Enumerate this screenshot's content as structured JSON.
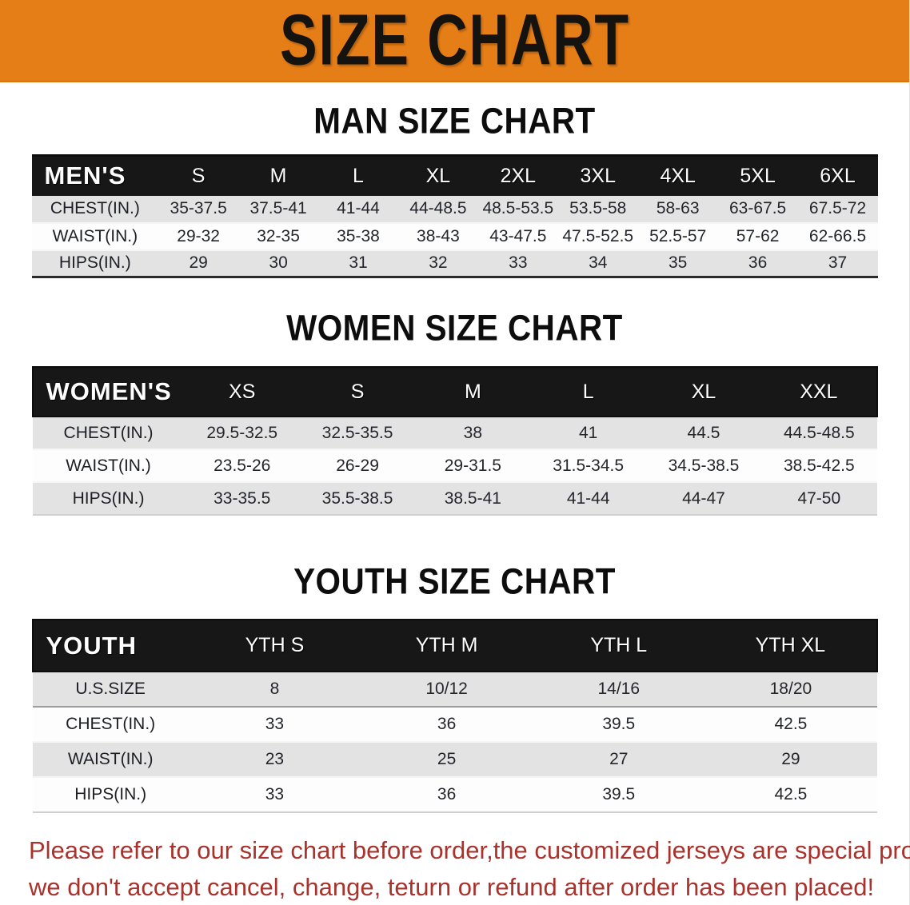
{
  "banner": {
    "title": "SIZE CHART",
    "bg_color": "#e67e17"
  },
  "colors": {
    "banner_orange": "#e67e17",
    "header_bar_black": "#171717",
    "row_stripe_gray": "#e3e3e3",
    "footer_red": "#a9332c"
  },
  "tables": {
    "men": {
      "heading": "MAN SIZE CHART",
      "header_label": "MEN'S",
      "columns": [
        "S",
        "M",
        "L",
        "XL",
        "2XL",
        "3XL",
        "4XL",
        "5XL",
        "6XL"
      ],
      "rows": [
        {
          "label": "CHEST(IN.)",
          "values": [
            "35-37.5",
            "37.5-41",
            "41-44",
            "44-48.5",
            "48.5-53.5",
            "53.5-58",
            "58-63",
            "63-67.5",
            "67.5-72"
          ]
        },
        {
          "label": "WAIST(IN.)",
          "values": [
            "29-32",
            "32-35",
            "35-38",
            "38-43",
            "43-47.5",
            "47.5-52.5",
            "52.5-57",
            "57-62",
            "62-66.5"
          ]
        },
        {
          "label": "HIPS(IN.)",
          "values": [
            "29",
            "30",
            "31",
            "32",
            "33",
            "34",
            "35",
            "36",
            "37"
          ]
        }
      ]
    },
    "women": {
      "heading": "WOMEN SIZE CHART",
      "header_label": "WOMEN'S",
      "columns": [
        "XS",
        "S",
        "M",
        "L",
        "XL",
        "XXL"
      ],
      "rows": [
        {
          "label": "CHEST(IN.)",
          "values": [
            "29.5-32.5",
            "32.5-35.5",
            "38",
            "41",
            "44.5",
            "44.5-48.5"
          ]
        },
        {
          "label": "WAIST(IN.)",
          "values": [
            "23.5-26",
            "26-29",
            "29-31.5",
            "31.5-34.5",
            "34.5-38.5",
            "38.5-42.5"
          ]
        },
        {
          "label": "HIPS(IN.)",
          "values": [
            "33-35.5",
            "35.5-38.5",
            "38.5-41",
            "41-44",
            "44-47",
            "47-50"
          ]
        }
      ]
    },
    "youth": {
      "heading": "YOUTH SIZE CHART",
      "header_label": "YOUTH",
      "columns": [
        "YTH S",
        "YTH M",
        "YTH L",
        "YTH XL"
      ],
      "rows": [
        {
          "label": "U.S.SIZE",
          "values": [
            "8",
            "10/12",
            "14/16",
            "18/20"
          ]
        },
        {
          "label": "CHEST(IN.)",
          "values": [
            "33",
            "36",
            "39.5",
            "42.5"
          ]
        },
        {
          "label": "WAIST(IN.)",
          "values": [
            "23",
            "25",
            "27",
            "29"
          ]
        },
        {
          "label": "HIPS(IN.)",
          "values": [
            "33",
            "36",
            "39.5",
            "42.5"
          ]
        }
      ]
    }
  },
  "footer": {
    "line1": "Please refer to our size chart before order,the customized jerseys are special products,",
    "line2": "we don't accept cancel, change, teturn or refund after order has been placed!"
  }
}
